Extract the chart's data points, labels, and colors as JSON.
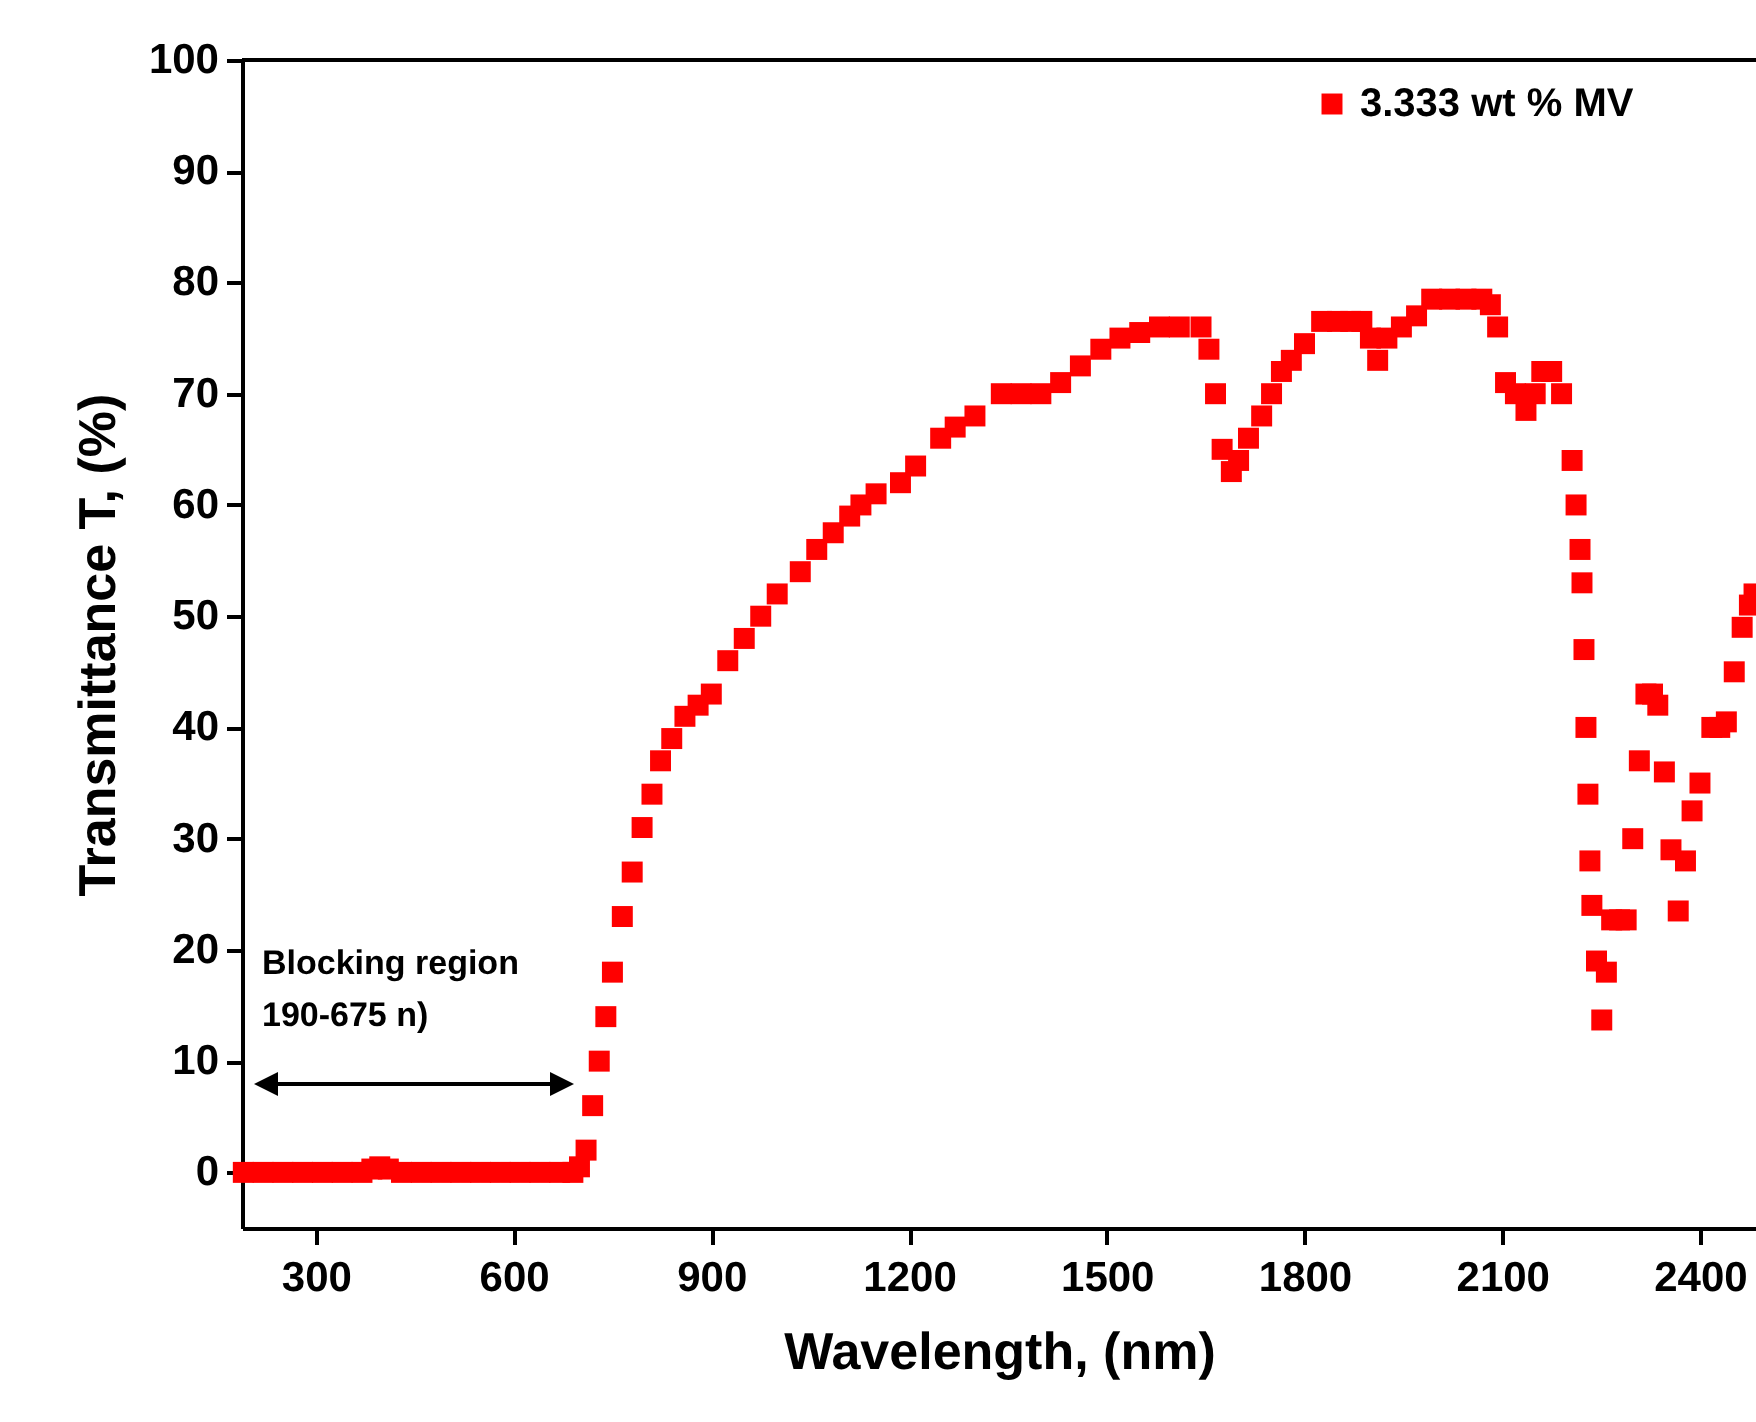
{
  "chart_data": {
    "type": "scatter",
    "xlabel": "Wavelength, (nm)",
    "ylabel": "Transmittance T, (%)",
    "xlim": [
      188,
      2485
    ],
    "ylim": [
      -5,
      100
    ],
    "xticks": [
      300,
      600,
      900,
      1200,
      1500,
      1800,
      2100,
      2400
    ],
    "yticks": [
      0,
      10,
      20,
      30,
      40,
      50,
      60,
      70,
      80,
      90,
      100
    ],
    "marker": "square",
    "legend": "top right",
    "annotations": [
      "Blocking region\n190-675 n)"
    ],
    "series": [
      {
        "name": "3.333 wt % MV",
        "color": "#ff0000",
        "x": [
          190,
          220,
          250,
          280,
          310,
          340,
          370,
          385,
          397,
          410,
          430,
          460,
          490,
          520,
          550,
          580,
          610,
          640,
          670,
          690,
          700,
          710,
          720,
          730,
          740,
          750,
          765,
          780,
          795,
          810,
          823,
          840,
          860,
          880,
          900,
          925,
          950,
          975,
          1000,
          1035,
          1060,
          1085,
          1110,
          1127,
          1150,
          1187,
          1210,
          1248,
          1270,
          1300,
          1340,
          1370,
          1400,
          1430,
          1460,
          1491,
          1520,
          1550,
          1580,
          1610,
          1643,
          1655,
          1665,
          1675,
          1689,
          1700,
          1715,
          1735,
          1750,
          1765,
          1780,
          1800,
          1826,
          1850,
          1870,
          1887,
          1900,
          1911,
          1925,
          1947,
          1970,
          1993,
          2020,
          2045,
          2069,
          2082,
          2093,
          2105,
          2120,
          2136,
          2150,
          2160,
          2175,
          2190,
          2206,
          2212,
          2218,
          2221,
          2224,
          2227,
          2230,
          2233,
          2236,
          2243,
          2251,
          2258,
          2266,
          2278,
          2288,
          2298,
          2308,
          2318,
          2328,
          2336,
          2346,
          2356,
          2367,
          2378,
          2388,
          2400,
          2418,
          2430,
          2440,
          2452,
          2464,
          2475,
          2482
        ],
        "values": [
          0,
          0,
          0,
          0,
          0,
          0,
          0,
          0.3,
          0.5,
          0.3,
          0,
          0,
          0,
          0,
          0,
          0,
          0,
          0,
          0,
          0,
          0.5,
          2,
          6,
          10,
          14,
          18,
          23,
          27,
          31,
          34,
          37,
          39,
          41,
          42,
          43,
          46,
          48,
          50,
          52,
          54,
          56,
          57.5,
          59,
          60,
          61,
          62,
          63.5,
          66,
          67,
          68,
          70,
          70,
          70,
          71,
          72.5,
          74,
          75,
          75.5,
          76,
          76,
          76,
          74,
          70,
          65,
          63,
          64,
          66,
          68,
          70,
          72,
          73,
          74.5,
          76.5,
          76.5,
          76.5,
          76.5,
          75,
          73,
          75,
          76,
          77,
          78.5,
          78.5,
          78.5,
          78.5,
          78,
          76,
          71,
          70,
          68.5,
          70,
          72,
          72,
          70,
          64,
          60,
          56,
          53,
          47,
          40,
          34,
          28,
          24,
          19,
          13.7,
          18,
          22.7,
          22.7,
          22.7,
          30,
          37,
          43,
          43,
          42,
          36,
          29,
          23.5,
          28,
          32.5,
          35,
          40,
          40,
          40.5,
          45,
          49,
          51,
          52
        ]
      }
    ]
  }
}
